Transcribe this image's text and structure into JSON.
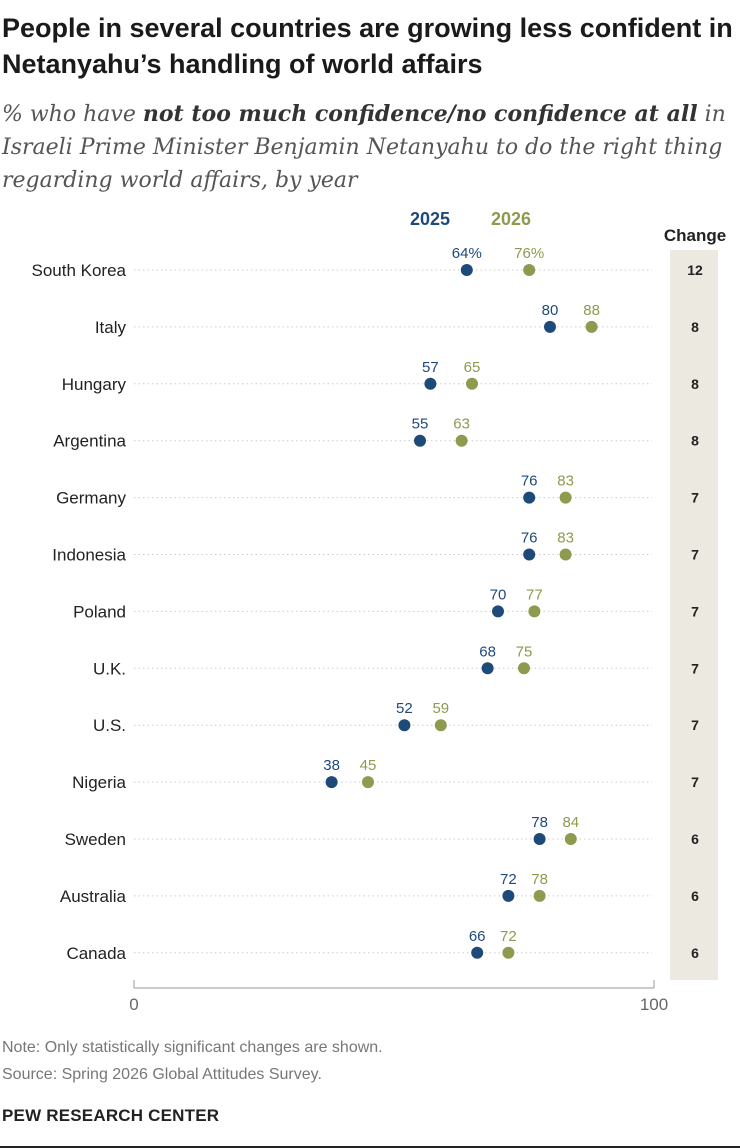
{
  "title": "People in several countries are growing less confident in Netanyahu’s handling of world affairs",
  "subtitle": {
    "prefix": "% who have ",
    "emphasis": "not too much confidence/no confidence at all",
    "suffix": " in Israeli Prime Minister Benjamin Netanyahu to do the right thing regarding world affairs, by year"
  },
  "colors": {
    "y2025": "#1e4a7a",
    "y2026": "#8c9b4d",
    "change_bg": "#ebe9e0",
    "grid": "#cccccc",
    "label": "#222222"
  },
  "chart_data": {
    "type": "dot",
    "xlim": [
      0,
      100
    ],
    "x_ticks": [
      "0",
      "100"
    ],
    "legend": [
      "2025",
      "2026"
    ],
    "change_header": "Change",
    "categories": [
      "South Korea",
      "Italy",
      "Hungary",
      "Argentina",
      "Germany",
      "Indonesia",
      "Poland",
      "U.K.",
      "U.S.",
      "Nigeria",
      "Sweden",
      "Australia",
      "Canada"
    ],
    "series": [
      {
        "name": "2025",
        "values": [
          64,
          80,
          57,
          55,
          76,
          76,
          70,
          68,
          52,
          38,
          78,
          72,
          66
        ]
      },
      {
        "name": "2026",
        "values": [
          76,
          88,
          65,
          63,
          83,
          83,
          77,
          75,
          59,
          45,
          84,
          78,
          72
        ]
      }
    ],
    "value_labels": {
      "2025": [
        "64%",
        "80",
        "57",
        "55",
        "76",
        "76",
        "70",
        "68",
        "52",
        "38",
        "78",
        "72",
        "66"
      ],
      "2026": [
        "76%",
        "88",
        "65",
        "63",
        "83",
        "83",
        "77",
        "75",
        "59",
        "45",
        "84",
        "78",
        "72"
      ]
    },
    "change": [
      "12",
      "8",
      "8",
      "8",
      "7",
      "7",
      "7",
      "7",
      "7",
      "7",
      "6",
      "6",
      "6"
    ]
  },
  "footer": {
    "note": "Note: Only statistically significant changes are shown.",
    "source": "Source: Spring 2026 Global Attitudes Survey.",
    "brand": "PEW RESEARCH CENTER"
  }
}
